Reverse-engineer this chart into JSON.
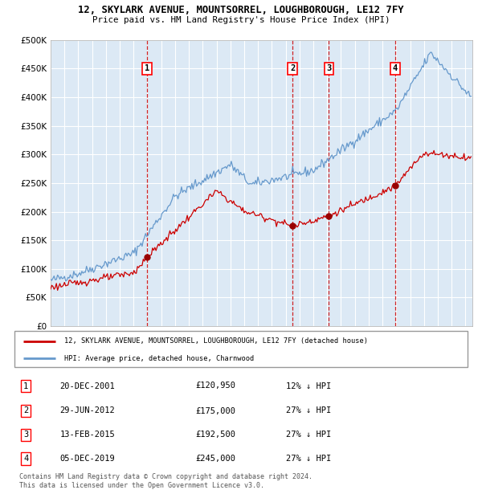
{
  "title": "12, SKYLARK AVENUE, MOUNTSORREL, LOUGHBOROUGH, LE12 7FY",
  "subtitle": "Price paid vs. HM Land Registry's House Price Index (HPI)",
  "legend_red": "12, SKYLARK AVENUE, MOUNTSORREL, LOUGHBOROUGH, LE12 7FY (detached house)",
  "legend_blue": "HPI: Average price, detached house, Charnwood",
  "footnote1": "Contains HM Land Registry data © Crown copyright and database right 2024.",
  "footnote2": "This data is licensed under the Open Government Licence v3.0.",
  "transactions": [
    {
      "num": 1,
      "date": "20-DEC-2001",
      "price": 120950,
      "pct": "12%",
      "dir": "↓",
      "x_year": 2001.97
    },
    {
      "num": 2,
      "date": "29-JUN-2012",
      "price": 175000,
      "pct": "27%",
      "dir": "↓",
      "x_year": 2012.49
    },
    {
      "num": 3,
      "date": "13-FEB-2015",
      "price": 192500,
      "pct": "27%",
      "dir": "↓",
      "x_year": 2015.12
    },
    {
      "num": 4,
      "date": "05-DEC-2019",
      "price": 245000,
      "pct": "27%",
      "dir": "↓",
      "x_year": 2019.93
    }
  ],
  "ylim": [
    0,
    500000
  ],
  "xlim_start": 1995.0,
  "xlim_end": 2025.5,
  "yticks": [
    0,
    50000,
    100000,
    150000,
    200000,
    250000,
    300000,
    350000,
    400000,
    450000,
    500000
  ],
  "xticks": [
    1995,
    1996,
    1997,
    1998,
    1999,
    2000,
    2001,
    2002,
    2003,
    2004,
    2005,
    2006,
    2007,
    2008,
    2009,
    2010,
    2011,
    2012,
    2013,
    2014,
    2015,
    2016,
    2017,
    2018,
    2019,
    2020,
    2021,
    2022,
    2023,
    2024,
    2025
  ],
  "background_color": "#dce9f5",
  "grid_color": "#ffffff",
  "red_color": "#cc0000",
  "blue_color": "#6699cc",
  "marker_color": "#990000"
}
